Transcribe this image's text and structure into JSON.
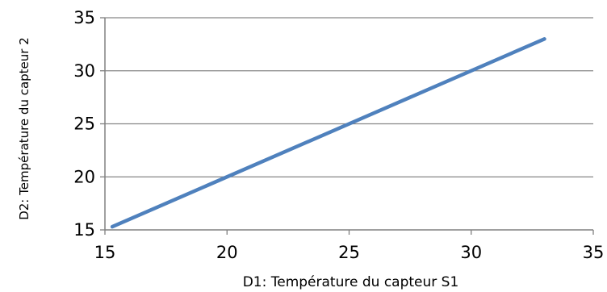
{
  "chart_data": {
    "type": "line",
    "title": "",
    "xlabel": "D1: Température du capteur S1",
    "ylabel": "D2: Température du capteur 2",
    "xlim": [
      15,
      35
    ],
    "ylim": [
      15,
      35
    ],
    "x_ticks": [
      "15",
      "20",
      "25",
      "30",
      "35"
    ],
    "y_ticks": [
      "15",
      "20",
      "25",
      "30",
      "35"
    ],
    "grid": "horizontal",
    "legend": "none",
    "series": [
      {
        "color": "#4f81bd",
        "x": [
          15.3,
          33.0
        ],
        "y": [
          15.3,
          33.0
        ]
      }
    ]
  }
}
